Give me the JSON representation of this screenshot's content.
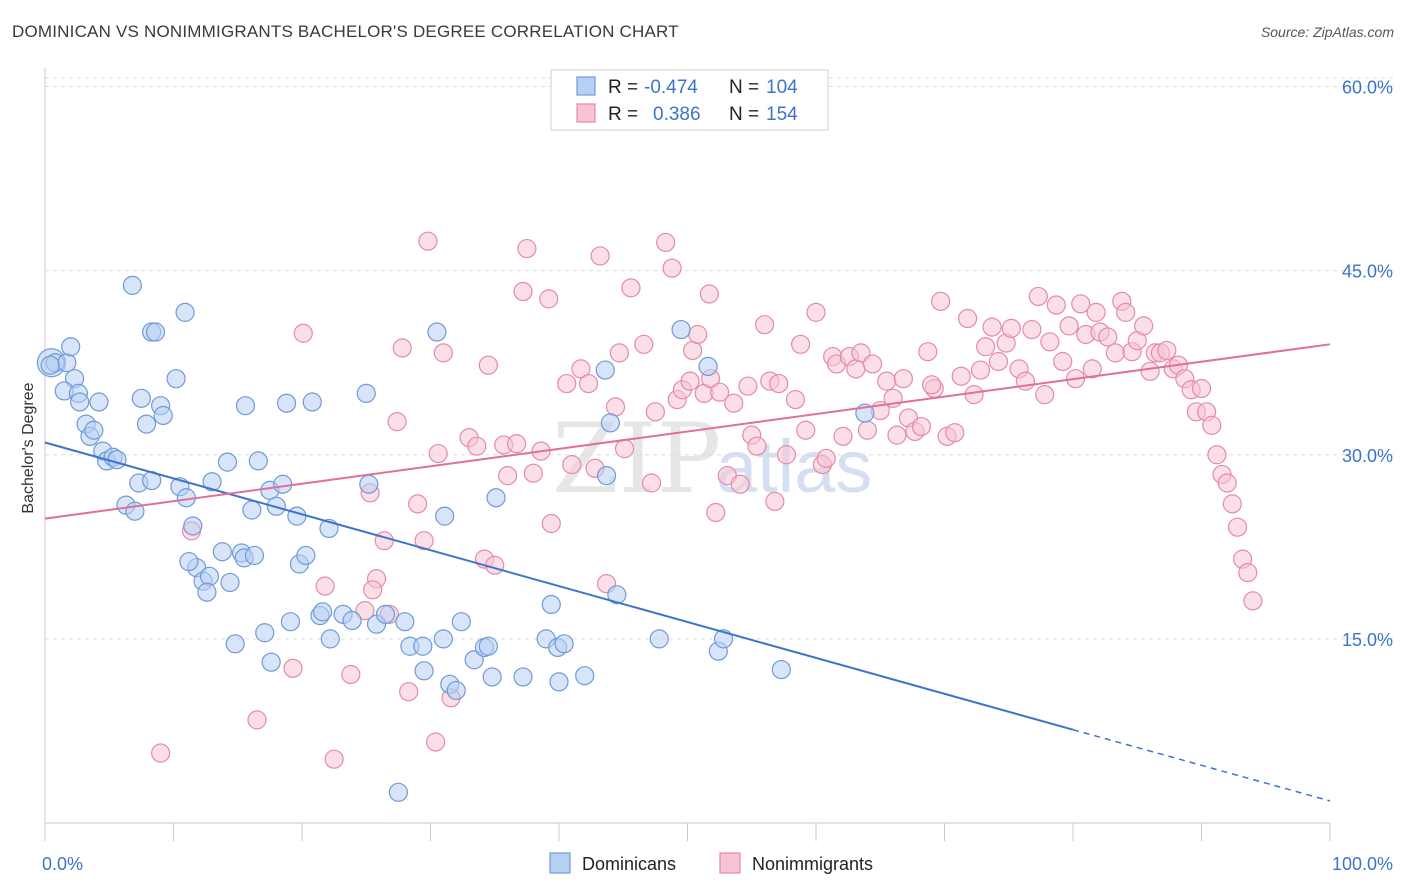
{
  "header": {
    "title": "DOMINICAN VS NONIMMIGRANTS BACHELOR'S DEGREE CORRELATION CHART",
    "source": "Source: ZipAtlas.com"
  },
  "watermark": {
    "zip": "ZIP",
    "atlas": "atlas"
  },
  "colors": {
    "blue": "#3d74c9",
    "blue_fill": "#b8d0f2",
    "pink": "#e07098",
    "pink_fill": "#f8c4d4"
  },
  "legend_box": {
    "rows": [
      {
        "series": "Dominicans",
        "r_label": "R =",
        "r_value": "-0.474",
        "n_label": "N =",
        "n_value": "104"
      },
      {
        "series": "Nonimmigrants",
        "r_label": "R =",
        "r_value": "0.386",
        "n_label": "N =",
        "n_value": "154"
      }
    ]
  },
  "chart_data": {
    "type": "scatter",
    "title": "DOMINICAN VS NONIMMIGRANTS BACHELOR'S DEGREE CORRELATION CHART",
    "xlabel": "",
    "ylabel": "Bachelor's Degree",
    "xlim": [
      0,
      100
    ],
    "ylim": [
      0,
      62
    ],
    "x_tick_labels": [
      "0.0%",
      "100.0%"
    ],
    "y_ticks": [
      15,
      30,
      45,
      60
    ],
    "y_tick_labels": [
      "15.0%",
      "30.0%",
      "45.0%",
      "60.0%"
    ],
    "grid": true,
    "legend_position": "top-center and bottom",
    "series": [
      {
        "name": "Dominicans",
        "color": "#3d74c9",
        "r": -0.474,
        "n": 104,
        "trend": {
          "x0": 0,
          "y0": 31.0,
          "x1": 80,
          "y1": 7.6,
          "dashed_to_x": 100,
          "dashed_to_y": 1.8
        },
        "points": [
          [
            0.5,
            37.5
          ],
          [
            0.8,
            37.5
          ],
          [
            1.7,
            37.5
          ],
          [
            2.0,
            38.8
          ],
          [
            2.3,
            36.2
          ],
          [
            1.5,
            35.2
          ],
          [
            2.6,
            35.0
          ],
          [
            2.7,
            34.3
          ],
          [
            3.2,
            32.5
          ],
          [
            3.5,
            31.5
          ],
          [
            3.8,
            32.0
          ],
          [
            4.2,
            34.3
          ],
          [
            4.5,
            30.3
          ],
          [
            4.8,
            29.5
          ],
          [
            5.3,
            29.8
          ],
          [
            5.6,
            29.6
          ],
          [
            6.3,
            25.9
          ],
          [
            7.0,
            25.4
          ],
          [
            7.3,
            27.7
          ],
          [
            8.3,
            27.9
          ],
          [
            6.8,
            43.8
          ],
          [
            7.5,
            34.6
          ],
          [
            7.9,
            32.5
          ],
          [
            8.3,
            40.0
          ],
          [
            8.6,
            40.0
          ],
          [
            9.0,
            34.0
          ],
          [
            9.2,
            33.2
          ],
          [
            10.2,
            36.2
          ],
          [
            10.5,
            27.4
          ],
          [
            10.9,
            41.6
          ],
          [
            11.0,
            26.5
          ],
          [
            11.5,
            24.2
          ],
          [
            11.8,
            20.8
          ],
          [
            11.2,
            21.3
          ],
          [
            12.3,
            19.7
          ],
          [
            12.8,
            20.1
          ],
          [
            12.6,
            18.8
          ],
          [
            13.0,
            27.8
          ],
          [
            13.8,
            22.1
          ],
          [
            14.2,
            29.4
          ],
          [
            14.4,
            19.6
          ],
          [
            14.8,
            14.6
          ],
          [
            15.3,
            22.0
          ],
          [
            15.5,
            21.6
          ],
          [
            15.6,
            34.0
          ],
          [
            16.1,
            25.5
          ],
          [
            16.3,
            21.8
          ],
          [
            16.6,
            29.5
          ],
          [
            17.1,
            15.5
          ],
          [
            17.6,
            13.1
          ],
          [
            17.5,
            27.1
          ],
          [
            18.0,
            25.8
          ],
          [
            18.5,
            27.6
          ],
          [
            19.1,
            16.4
          ],
          [
            18.8,
            34.2
          ],
          [
            19.6,
            25.0
          ],
          [
            19.8,
            21.1
          ],
          [
            20.3,
            21.8
          ],
          [
            20.8,
            34.3
          ],
          [
            21.4,
            16.9
          ],
          [
            21.6,
            17.2
          ],
          [
            22.1,
            24.0
          ],
          [
            22.2,
            15.0
          ],
          [
            23.2,
            17.0
          ],
          [
            23.9,
            16.5
          ],
          [
            25.0,
            35.0
          ],
          [
            25.2,
            27.6
          ],
          [
            25.8,
            16.2
          ],
          [
            26.5,
            17.0
          ],
          [
            27.5,
            2.5
          ],
          [
            28.0,
            16.4
          ],
          [
            28.4,
            14.4
          ],
          [
            29.4,
            14.4
          ],
          [
            29.5,
            12.4
          ],
          [
            30.5,
            40.0
          ],
          [
            31.0,
            15.0
          ],
          [
            31.1,
            25.0
          ],
          [
            31.5,
            11.3
          ],
          [
            32.0,
            10.8
          ],
          [
            32.4,
            16.4
          ],
          [
            33.4,
            13.3
          ],
          [
            34.2,
            14.3
          ],
          [
            34.5,
            14.4
          ],
          [
            34.8,
            11.9
          ],
          [
            35.1,
            26.5
          ],
          [
            37.2,
            11.9
          ],
          [
            39.0,
            15.0
          ],
          [
            39.4,
            17.8
          ],
          [
            39.9,
            14.3
          ],
          [
            40.0,
            11.5
          ],
          [
            40.4,
            14.6
          ],
          [
            42.0,
            12.0
          ],
          [
            43.6,
            36.9
          ],
          [
            43.7,
            28.3
          ],
          [
            44.0,
            32.6
          ],
          [
            44.5,
            18.6
          ],
          [
            47.8,
            15.0
          ],
          [
            49.5,
            40.2
          ],
          [
            51.6,
            37.2
          ],
          [
            52.4,
            14.0
          ],
          [
            52.8,
            15.0
          ],
          [
            57.3,
            12.5
          ],
          [
            63.8,
            33.4
          ],
          [
            0.4,
            37.3
          ]
        ]
      },
      {
        "name": "Nonimmigrants",
        "color": "#e07098",
        "r": 0.386,
        "n": 154,
        "trend": {
          "x0": 0,
          "y0": 24.8,
          "x1": 100,
          "y1": 39.0
        },
        "points": [
          [
            9.0,
            5.7
          ],
          [
            11.4,
            23.8
          ],
          [
            16.5,
            8.4
          ],
          [
            19.3,
            12.6
          ],
          [
            20.1,
            39.9
          ],
          [
            21.8,
            19.3
          ],
          [
            22.5,
            5.2
          ],
          [
            23.8,
            12.1
          ],
          [
            24.9,
            17.3
          ],
          [
            25.3,
            26.9
          ],
          [
            25.8,
            19.9
          ],
          [
            26.4,
            23.0
          ],
          [
            26.8,
            17.0
          ],
          [
            27.4,
            32.7
          ],
          [
            27.8,
            38.7
          ],
          [
            28.3,
            10.7
          ],
          [
            29.0,
            26.0
          ],
          [
            29.5,
            23.0
          ],
          [
            29.8,
            47.4
          ],
          [
            30.4,
            6.6
          ],
          [
            30.6,
            30.1
          ],
          [
            31.0,
            38.3
          ],
          [
            31.6,
            10.2
          ],
          [
            33.0,
            31.4
          ],
          [
            33.6,
            30.7
          ],
          [
            34.2,
            21.5
          ],
          [
            34.5,
            37.3
          ],
          [
            35.0,
            21.0
          ],
          [
            35.7,
            30.8
          ],
          [
            36.0,
            28.3
          ],
          [
            37.2,
            43.3
          ],
          [
            37.5,
            46.8
          ],
          [
            38.0,
            28.5
          ],
          [
            38.6,
            30.3
          ],
          [
            39.2,
            42.7
          ],
          [
            39.4,
            24.4
          ],
          [
            40.6,
            35.8
          ],
          [
            41.0,
            29.2
          ],
          [
            41.7,
            37.0
          ],
          [
            42.3,
            35.8
          ],
          [
            42.8,
            28.9
          ],
          [
            43.2,
            46.2
          ],
          [
            43.7,
            19.5
          ],
          [
            44.4,
            33.9
          ],
          [
            44.7,
            38.3
          ],
          [
            45.1,
            30.5
          ],
          [
            45.6,
            43.6
          ],
          [
            46.6,
            39.0
          ],
          [
            47.2,
            27.7
          ],
          [
            47.5,
            33.5
          ],
          [
            48.3,
            47.3
          ],
          [
            48.8,
            45.2
          ],
          [
            49.2,
            34.5
          ],
          [
            49.6,
            35.3
          ],
          [
            50.2,
            36.0
          ],
          [
            50.4,
            38.5
          ],
          [
            50.8,
            39.8
          ],
          [
            51.3,
            35.0
          ],
          [
            51.8,
            36.2
          ],
          [
            52.2,
            25.3
          ],
          [
            52.5,
            35.1
          ],
          [
            53.1,
            28.3
          ],
          [
            53.6,
            34.2
          ],
          [
            54.1,
            27.6
          ],
          [
            54.7,
            35.6
          ],
          [
            55.0,
            31.6
          ],
          [
            55.4,
            30.7
          ],
          [
            56.0,
            40.6
          ],
          [
            56.4,
            36.0
          ],
          [
            56.8,
            26.2
          ],
          [
            57.1,
            35.8
          ],
          [
            57.7,
            30.0
          ],
          [
            58.4,
            34.5
          ],
          [
            58.8,
            39.0
          ],
          [
            59.2,
            32.0
          ],
          [
            60.0,
            41.6
          ],
          [
            60.5,
            29.2
          ],
          [
            60.8,
            29.7
          ],
          [
            61.3,
            38.0
          ],
          [
            61.6,
            37.4
          ],
          [
            62.1,
            31.5
          ],
          [
            62.6,
            38.0
          ],
          [
            63.1,
            37.0
          ],
          [
            63.5,
            38.3
          ],
          [
            64.0,
            32.0
          ],
          [
            64.4,
            37.4
          ],
          [
            65.0,
            33.6
          ],
          [
            65.5,
            36.0
          ],
          [
            66.0,
            34.6
          ],
          [
            66.3,
            31.6
          ],
          [
            66.8,
            36.2
          ],
          [
            67.2,
            33.0
          ],
          [
            67.7,
            31.9
          ],
          [
            68.2,
            32.3
          ],
          [
            68.7,
            38.4
          ],
          [
            69.2,
            35.4
          ],
          [
            69.7,
            42.5
          ],
          [
            70.2,
            31.5
          ],
          [
            70.8,
            31.8
          ],
          [
            71.3,
            36.4
          ],
          [
            71.8,
            41.1
          ],
          [
            72.3,
            34.9
          ],
          [
            72.8,
            36.9
          ],
          [
            73.2,
            38.8
          ],
          [
            73.7,
            40.4
          ],
          [
            74.2,
            37.6
          ],
          [
            74.8,
            39.1
          ],
          [
            75.2,
            40.3
          ],
          [
            75.8,
            37.0
          ],
          [
            76.3,
            36.0
          ],
          [
            76.8,
            40.2
          ],
          [
            77.3,
            42.9
          ],
          [
            77.8,
            34.9
          ],
          [
            78.2,
            39.2
          ],
          [
            78.7,
            42.2
          ],
          [
            79.2,
            37.6
          ],
          [
            79.7,
            40.5
          ],
          [
            80.2,
            36.2
          ],
          [
            80.6,
            42.3
          ],
          [
            81.0,
            39.8
          ],
          [
            81.5,
            37.0
          ],
          [
            81.8,
            41.6
          ],
          [
            82.1,
            40.0
          ],
          [
            82.7,
            39.6
          ],
          [
            83.3,
            38.3
          ],
          [
            83.8,
            42.5
          ],
          [
            84.1,
            41.6
          ],
          [
            84.6,
            38.4
          ],
          [
            85.0,
            39.3
          ],
          [
            85.5,
            40.5
          ],
          [
            86.0,
            36.8
          ],
          [
            86.4,
            38.3
          ],
          [
            86.8,
            38.3
          ],
          [
            87.3,
            38.5
          ],
          [
            87.8,
            37.0
          ],
          [
            88.2,
            37.3
          ],
          [
            88.7,
            36.2
          ],
          [
            89.2,
            35.3
          ],
          [
            89.6,
            33.5
          ],
          [
            90.0,
            35.4
          ],
          [
            90.4,
            33.5
          ],
          [
            90.8,
            32.4
          ],
          [
            91.2,
            30.0
          ],
          [
            91.6,
            28.4
          ],
          [
            92.0,
            27.7
          ],
          [
            92.4,
            26.0
          ],
          [
            92.8,
            24.1
          ],
          [
            93.2,
            21.5
          ],
          [
            93.6,
            20.4
          ],
          [
            94.0,
            18.1
          ],
          [
            25.5,
            19.0
          ],
          [
            36.7,
            30.9
          ],
          [
            51.7,
            43.1
          ],
          [
            69.0,
            35.7
          ]
        ]
      }
    ]
  },
  "bottom_legend": {
    "items": [
      {
        "label": "Dominicans"
      },
      {
        "label": "Nonimmigrants"
      }
    ]
  }
}
